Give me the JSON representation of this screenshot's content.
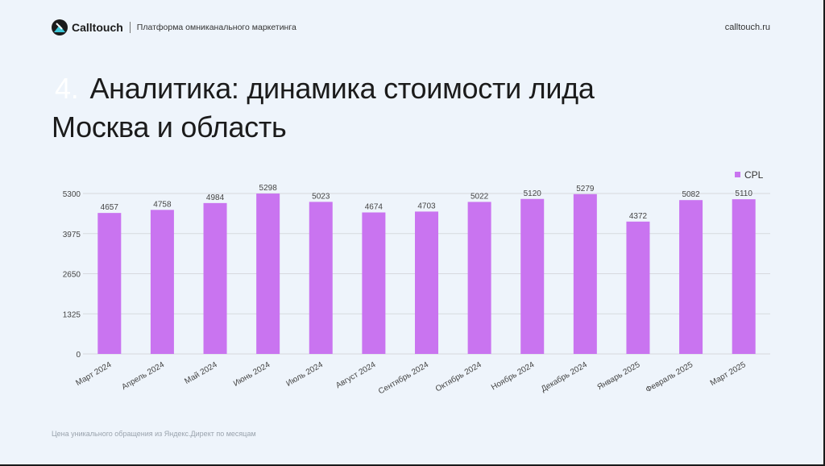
{
  "header": {
    "brand": "Calltouch",
    "tagline": "Платформа омниканального маркетинга",
    "site": "calltouch.ru"
  },
  "title": {
    "number": "4.",
    "line1": "Аналитика: динамика стоимости лида",
    "line2": "Москва и область"
  },
  "footnote": "Цена уникального обращения из Яндекс.Директ по месяцам",
  "colors": {
    "bar": "#c974f0",
    "background": "#eef4fb",
    "grid": "#d6d9de"
  },
  "chart_data": {
    "type": "bar",
    "categories": [
      "Март 2024",
      "Апрель 2024",
      "Май 2024",
      "Июнь 2024",
      "Июль 2024",
      "Август 2024",
      "Сентябрь 2024",
      "Октябрь 2024",
      "Ноябрь 2024",
      "Декабрь 2024",
      "Январь 2025",
      "Февраль 2025",
      "Март 2025"
    ],
    "series": [
      {
        "name": "CPL",
        "values": [
          4657,
          4758,
          4984,
          5298,
          5023,
          4674,
          4703,
          5022,
          5120,
          5279,
          4372,
          5082,
          5110
        ]
      }
    ],
    "yticks": [
      0,
      1325,
      2650,
      3975,
      5300
    ],
    "ylim": [
      0,
      5300
    ],
    "grid": true,
    "legend_position": "top-right"
  }
}
